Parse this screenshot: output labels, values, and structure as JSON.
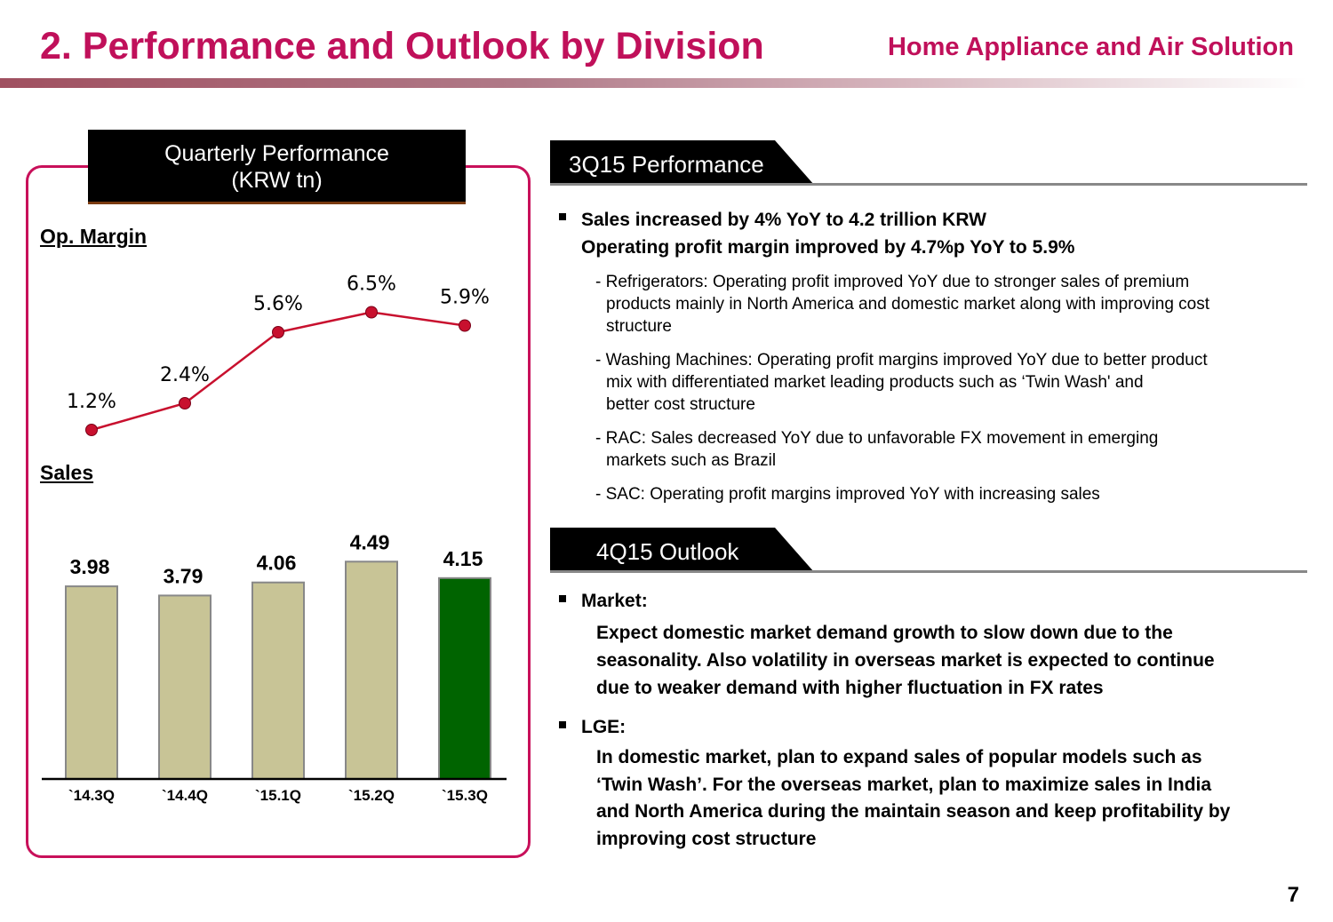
{
  "header": {
    "title": "2. Performance and Outlook by Division",
    "subtitle": "Home Appliance and Air Solution"
  },
  "panel": {
    "title_line1": "Quarterly Performance",
    "title_line2": "(KRW tn)",
    "op_margin_label": "Op. Margin",
    "sales_label": "Sales"
  },
  "colors": {
    "accent": "#c0105a",
    "bar": "#c8c496",
    "bar_highlight": "#006400",
    "marker": "#c8102e"
  },
  "chart_data": [
    {
      "type": "line",
      "title": "Op. Margin",
      "categories": [
        "`14.3Q",
        "`14.4Q",
        "`15.1Q",
        "`15.2Q",
        "`15.3Q"
      ],
      "values": [
        1.2,
        2.4,
        5.6,
        6.5,
        5.9
      ],
      "labels": [
        "1.2%",
        "2.4%",
        "5.6%",
        "6.5%",
        "5.9%"
      ],
      "unit": "%",
      "grid": false
    },
    {
      "type": "bar",
      "title": "Sales",
      "categories": [
        "`14.3Q",
        "`14.4Q",
        "`15.1Q",
        "`15.2Q",
        "`15.3Q"
      ],
      "values": [
        3.98,
        3.79,
        4.06,
        4.49,
        4.15
      ],
      "labels": [
        "3.98",
        "3.79",
        "4.06",
        "4.49",
        "4.15"
      ],
      "highlight_index": 4,
      "unit": "KRW tn",
      "ylim": [
        0,
        4.49
      ],
      "grid": false
    }
  ],
  "perf": {
    "tab": "3Q15 Performance",
    "main_lines": [
      "Sales increased by 4%  YoY to 4.2 trillion KRW",
      "Operating profit margin improved by 4.7%p YoY to 5.9%"
    ],
    "items": [
      [
        "- Refrigerators: Operating profit improved YoY due to stronger sales of premium",
        "products mainly in North America and domestic market along with improving cost",
        "structure"
      ],
      [
        "- Washing Machines: Operating profit margins improved YoY due to better product",
        "mix with differentiated market leading products such as ‘Twin Wash' and",
        "better cost structure"
      ],
      [
        "- RAC: Sales decreased YoY due to unfavorable FX movement in emerging",
        "markets such as Brazil"
      ],
      [
        "- SAC: Operating profit margins improved YoY with increasing sales"
      ]
    ]
  },
  "outlook": {
    "tab": "4Q15 Outlook",
    "market_label": "Market:",
    "market_lines": [
      "Expect domestic market demand growth to slow down due to the",
      "seasonality. Also volatility in overseas market is expected to continue",
      "due to weaker demand with higher fluctuation in FX rates"
    ],
    "lge_label": "LGE:",
    "lge_lines": [
      "In domestic market, plan to expand sales of popular models such as",
      "‘Twin Wash’. For the overseas market, plan to maximize sales in India",
      "and North America during the maintain season and keep profitability by",
      "improving cost structure"
    ]
  },
  "page_number": "7"
}
